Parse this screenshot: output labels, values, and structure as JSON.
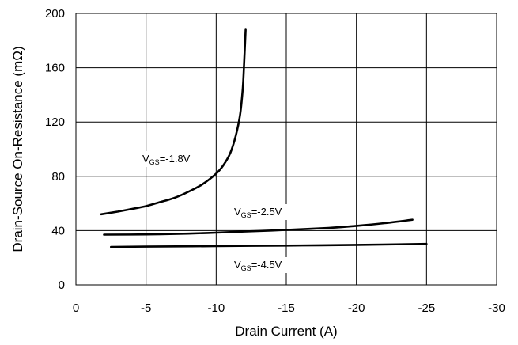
{
  "chart_data": {
    "type": "line",
    "title": "",
    "xlabel": "Drain Current (A)",
    "ylabel": "Drain-Source On-Resistance (mΩ)",
    "xlim": [
      0,
      -30
    ],
    "ylim": [
      0,
      200
    ],
    "xticks": [
      0,
      -5,
      -10,
      -15,
      -20,
      -25,
      -30
    ],
    "yticks": [
      0,
      40,
      80,
      120,
      160,
      200
    ],
    "xtick_labels": [
      "0",
      "-5",
      "-10",
      "-15",
      "-20",
      "-25",
      "-30"
    ],
    "ytick_labels": [
      "0",
      "40",
      "80",
      "120",
      "160",
      "200"
    ],
    "grid": true,
    "legend": "none",
    "line_color": "#000000",
    "series": [
      {
        "annotation": {
          "prefix": "V",
          "sub": "GS",
          "value": "=-1.8V"
        },
        "points": [
          [
            -1.8,
            52
          ],
          [
            -3,
            54
          ],
          [
            -4,
            56
          ],
          [
            -5,
            58
          ],
          [
            -6,
            61
          ],
          [
            -7,
            64
          ],
          [
            -8,
            68.5
          ],
          [
            -9,
            74
          ],
          [
            -10,
            82
          ],
          [
            -10.5,
            88
          ],
          [
            -11,
            97
          ],
          [
            -11.4,
            110
          ],
          [
            -11.7,
            125
          ],
          [
            -11.9,
            145
          ],
          [
            -12.0,
            165
          ],
          [
            -12.1,
            188
          ]
        ]
      },
      {
        "annotation": {
          "prefix": "V",
          "sub": "GS",
          "value": "=-2.5V"
        },
        "points": [
          [
            -2,
            37
          ],
          [
            -5,
            37.2
          ],
          [
            -8,
            37.8
          ],
          [
            -10,
            38.5
          ],
          [
            -12,
            39.3
          ],
          [
            -15,
            40.5
          ],
          [
            -18,
            42
          ],
          [
            -20,
            43.5
          ],
          [
            -22,
            45.5
          ],
          [
            -24,
            48
          ]
        ]
      },
      {
        "annotation": {
          "prefix": "V",
          "sub": "GS",
          "value": "=-4.5V"
        },
        "points": [
          [
            -2.5,
            28
          ],
          [
            -5,
            28.2
          ],
          [
            -10,
            28.6
          ],
          [
            -15,
            29
          ],
          [
            -20,
            29.5
          ],
          [
            -25,
            30.2
          ]
        ]
      }
    ]
  }
}
